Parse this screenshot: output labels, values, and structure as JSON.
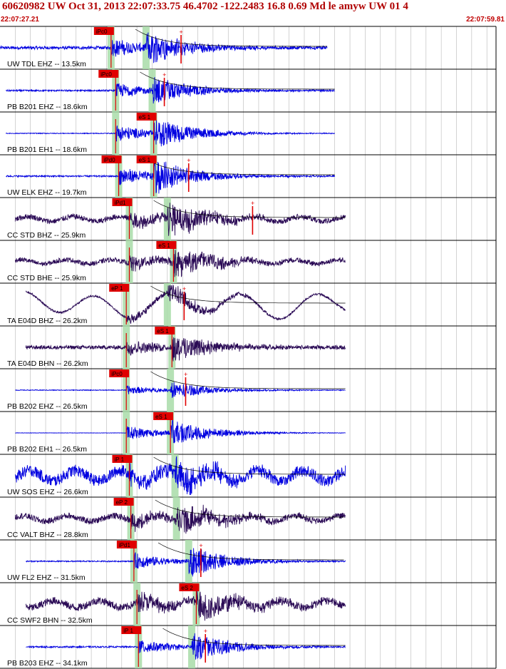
{
  "header": {
    "title": "60620982 UW Oct 31, 2013 22:07:33.75   46.4702 -122.2483 16.8 0.69 Md le amyw UW 01   4",
    "start_time": "22:07:27.21",
    "end_time": "22:07:59.81"
  },
  "chart_data": {
    "type": "line",
    "x_range_seconds": [
      0,
      32.6
    ],
    "traces": [
      {
        "label": "UW TDL EHZ -- 13.5km",
        "color": "#0000e0",
        "p_pick": "iPc0",
        "p_time": 7.3,
        "s_pick": "",
        "s_time": 9.6,
        "amp": 0.9,
        "noise": 0.08,
        "sig_end": 21.5,
        "coda": true,
        "mark": 11.9,
        "start": 0.0,
        "end": 21.5
      },
      {
        "label": "PB B201 EHZ -- 18.6km",
        "color": "#0000e0",
        "p_pick": "iPc0",
        "p_time": 7.6,
        "s_pick": "",
        "s_time": 10.0,
        "amp": 0.75,
        "noise": 0.04,
        "coda": true,
        "mark": 10.8,
        "start": 0.4,
        "end": 22.0
      },
      {
        "label": "PB B201 EH1 -- 18.6km",
        "color": "#0000e0",
        "p_pick": "",
        "p_time": 7.6,
        "s_pick": "eS 1",
        "s_time": 10.1,
        "amp": 0.85,
        "noise": 0.02,
        "coda": false,
        "mark": null,
        "start": 0.4,
        "end": 22.0
      },
      {
        "label": "UW ELK EHZ -- 19.7km",
        "color": "#0000e0",
        "p_pick": "iPd0",
        "p_time": 7.8,
        "s_pick": "eS 1",
        "s_time": 10.1,
        "amp": 0.9,
        "noise": 0.04,
        "coda": true,
        "mark": 12.4,
        "start": 0.4,
        "end": 22.0
      },
      {
        "label": "CC STD BHZ -- 25.9km",
        "color": "#2a0a55",
        "p_pick": "iPd1",
        "p_time": 8.5,
        "s_pick": "",
        "s_time": 11.0,
        "amp": 0.85,
        "noise": 0.14,
        "coda": true,
        "mark": 16.6,
        "start": 1.0,
        "end": 22.7
      },
      {
        "label": "CC STD BHE -- 25.9km",
        "color": "#2a0a55",
        "p_pick": "",
        "p_time": 8.5,
        "s_pick": "eS 1",
        "s_time": 11.4,
        "amp": 0.8,
        "noise": 0.12,
        "coda": false,
        "mark": null,
        "start": 1.0,
        "end": 22.7
      },
      {
        "label": "TA E04D BHZ -- 26.2km",
        "color": "#2a0a55",
        "p_pick": "eP 1",
        "p_time": 8.3,
        "s_pick": "",
        "s_time": 11.0,
        "amp": 0.55,
        "noise": 0.05,
        "coda": true,
        "mark": 12.1,
        "start": 1.7,
        "end": 22.7,
        "wave": true
      },
      {
        "label": "TA E04D BHN -- 26.2km",
        "color": "#2a0a55",
        "p_pick": "",
        "p_time": 8.3,
        "s_pick": "eS 1",
        "s_time": 11.3,
        "amp": 0.75,
        "noise": 0.1,
        "coda": false,
        "mark": null,
        "start": 1.7,
        "end": 22.7
      },
      {
        "label": "PB B202 EHZ -- 26.5km",
        "color": "#0000e0",
        "p_pick": "iPc0",
        "p_time": 8.3,
        "s_pick": "",
        "s_time": 11.2,
        "amp": 0.45,
        "noise": 0.02,
        "coda": true,
        "mark": 12.2,
        "start": 1.0,
        "end": 22.7
      },
      {
        "label": "PB B202 EH1 -- 26.5km",
        "color": "#0000e0",
        "p_pick": "",
        "p_time": 8.3,
        "s_pick": "eS 1",
        "s_time": 11.2,
        "amp": 0.7,
        "noise": 0.01,
        "coda": false,
        "mark": null,
        "start": 1.0,
        "end": 22.7
      },
      {
        "label": "UW SOS EHZ -- 26.6km",
        "color": "#0000e0",
        "p_pick": "iP 1",
        "p_time": 8.5,
        "s_pick": "",
        "s_time": 11.5,
        "amp": 0.85,
        "noise": 0.3,
        "coda": true,
        "mark": null,
        "start": 1.0,
        "end": 22.7
      },
      {
        "label": "CC VALT BHZ -- 28.8km",
        "color": "#2a0a55",
        "p_pick": "eP 2",
        "p_time": 8.6,
        "s_pick": "",
        "s_time": 11.6,
        "amp": 0.85,
        "noise": 0.16,
        "coda": true,
        "mark": null,
        "start": 1.0,
        "end": 22.7
      },
      {
        "label": "UW FL2 EHZ -- 31.5km",
        "color": "#0000e0",
        "p_pick": "iPd1",
        "p_time": 8.8,
        "s_pick": "",
        "s_time": 12.4,
        "amp": 0.8,
        "noise": 0.03,
        "coda": true,
        "mark": 13.2,
        "start": 1.7,
        "end": 22.7
      },
      {
        "label": "CC SWF2 BHN -- 32.5km",
        "color": "#2a0a55",
        "p_pick": "",
        "p_time": 9.0,
        "s_pick": "eS 2",
        "s_time": 12.9,
        "amp": 0.85,
        "noise": 0.2,
        "coda": false,
        "mark": null,
        "start": 1.7,
        "end": 22.7
      },
      {
        "label": "PB B203 EHZ -- 34.1km",
        "color": "#0000e0",
        "p_pick": "iP 1",
        "p_time": 9.1,
        "s_pick": "",
        "s_time": 12.6,
        "amp": 0.75,
        "noise": 0.04,
        "coda": true,
        "mark": 13.5,
        "start": 1.7,
        "end": 22.7
      }
    ]
  }
}
